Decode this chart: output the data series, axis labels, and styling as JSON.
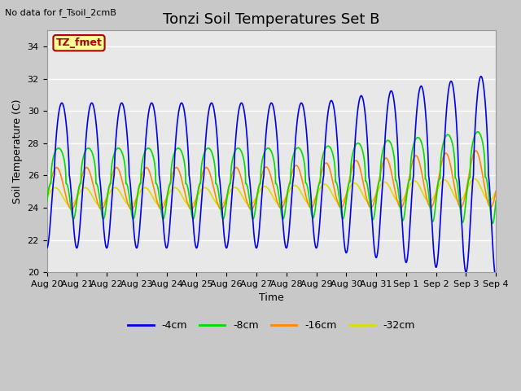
{
  "title": "Tonzi Soil Temperatures Set B",
  "subtitle": "No data for f_Tsoil_2cmB",
  "xlabel": "Time",
  "ylabel": "Soil Temperature (C)",
  "ylim": [
    20,
    35
  ],
  "yticks": [
    20,
    22,
    24,
    26,
    28,
    30,
    32,
    34
  ],
  "xlim": [
    0,
    15
  ],
  "xtick_labels": [
    "Aug 20",
    "Aug 21",
    "Aug 22",
    "Aug 23",
    "Aug 24",
    "Aug 25",
    "Aug 26",
    "Aug 27",
    "Aug 28",
    "Aug 29",
    "Aug 30",
    "Aug 31",
    "Sep 1",
    "Sep 2",
    "Sep 3",
    "Sep 4"
  ],
  "series_colors": [
    "#0000ee",
    "#00dd00",
    "#ff8800",
    "#dddd00"
  ],
  "series_labels": [
    "-4cm",
    "-8cm",
    "-16cm",
    "-32cm"
  ],
  "legend_box_facecolor": "#ffff99",
  "legend_box_edgecolor": "#aa0000",
  "legend_label_color": "#aa0000",
  "legend_label": "TZ_fmet",
  "fig_bg_color": "#c8c8c8",
  "plot_bg_color": "#e8e8e8",
  "grid_color": "#ffffff",
  "title_fontsize": 13,
  "axis_label_fontsize": 9,
  "tick_fontsize": 8,
  "linewidth": 1.2
}
